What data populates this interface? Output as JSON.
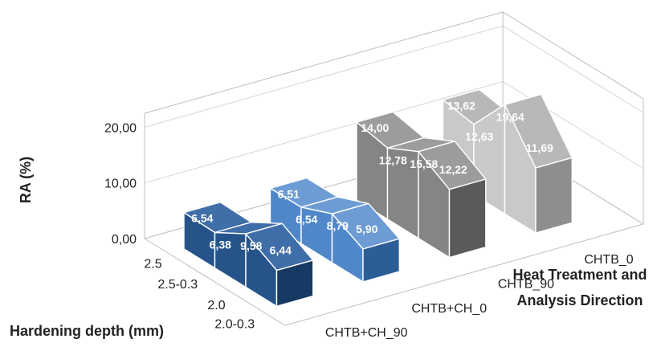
{
  "chart_data": {
    "type": "area",
    "title": "",
    "ylabel": "RA (%)",
    "xlabel": "Hardening depth (mm)",
    "zlabel": [
      "Heat Treatment and",
      "Analysis Direction"
    ],
    "ylim": [
      0,
      20
    ],
    "yticks": [
      "0,00",
      "10,00",
      "20,00"
    ],
    "categories": [
      "2.5",
      "2.5-0.3",
      "2.0",
      "2.0-0.3"
    ],
    "series": [
      {
        "name": "CHTB+CH_90",
        "values": [
          6.54,
          6.38,
          9.58,
          6.44
        ],
        "labels": [
          "6,54",
          "6,38",
          "9,58",
          "6,44"
        ],
        "top_color": "#3f6ea8",
        "front_color": "#26548a",
        "side_color": "#163a63"
      },
      {
        "name": "CHTB+CH_0",
        "values": [
          6.51,
          6.54,
          8.79,
          5.9
        ],
        "labels": [
          "6,51",
          "6,54",
          "8,79",
          "5,90"
        ],
        "top_color": "#6d9cd4",
        "front_color": "#4f87c9",
        "side_color": "#2c5d97"
      },
      {
        "name": "CHTB_90",
        "values": [
          14.0,
          12.78,
          15.58,
          12.22
        ],
        "labels": [
          "14,00",
          "12,78",
          "15,58",
          "12,22"
        ],
        "top_color": "#9c9c9c",
        "front_color": "#858585",
        "side_color": "#5a5a5a"
      },
      {
        "name": "CHTB_0",
        "values": [
          13.62,
          12.63,
          19.64,
          11.69
        ],
        "labels": [
          "13,62",
          "12,63",
          "19,64",
          "11,69"
        ],
        "top_color": "#b8b8b8",
        "front_color": "#c9c9c9",
        "side_color": "#8e8e8e"
      }
    ],
    "grid": true,
    "legend": "none"
  }
}
